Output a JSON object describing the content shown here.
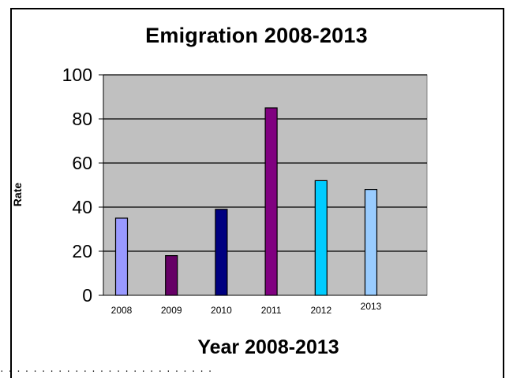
{
  "chart_data": {
    "type": "bar",
    "title": "Emigration 2008-2013",
    "xlabel": "Year 2008-2013",
    "ylabel": "Rate",
    "categories": [
      "2008",
      "2009",
      "2010",
      "2011",
      "2012",
      "2013"
    ],
    "values": [
      35,
      18,
      39,
      85,
      52,
      48
    ],
    "bar_colors": [
      "#9999ff",
      "#660066",
      "#000080",
      "#800080",
      "#00ccff",
      "#99ccff"
    ],
    "ylim": [
      0,
      100
    ],
    "yticks": [
      0,
      20,
      40,
      60,
      80,
      100
    ],
    "grid": true,
    "plot_background": "#c0c0c0"
  },
  "footer": {
    "text": "·  ·  ·  · · ·  ·  · ·  ·  · ·  ·  ·   ·  ·  ·  ·  · ·  ·  · ·  ·  ·  ·"
  }
}
